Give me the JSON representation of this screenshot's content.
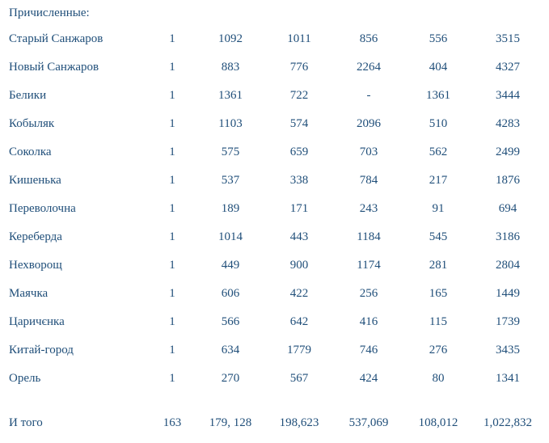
{
  "heading": "Причисленные:",
  "rows": [
    {
      "name": "Старый Санжаров",
      "values": [
        "1",
        "1092",
        "1011",
        "856",
        "556",
        "3515"
      ]
    },
    {
      "name": "Новый Санжаров",
      "values": [
        "1",
        "883",
        "776",
        "2264",
        "404",
        "4327"
      ]
    },
    {
      "name": "Белики",
      "values": [
        "1",
        "1361",
        "722",
        "-",
        "1361",
        "3444"
      ]
    },
    {
      "name": "Кобыляк",
      "values": [
        "1",
        "1103",
        "574",
        "2096",
        "510",
        "4283"
      ]
    },
    {
      "name": "Соколка",
      "values": [
        "1",
        "575",
        "659",
        "703",
        "562",
        "2499"
      ]
    },
    {
      "name": "Кишенька",
      "values": [
        "1",
        "537",
        "338",
        "784",
        "217",
        "1876"
      ]
    },
    {
      "name": "Переволочна",
      "values": [
        "1",
        "189",
        "171",
        "243",
        "91",
        "694"
      ]
    },
    {
      "name": "Кереберда",
      "values": [
        "1",
        "1014",
        "443",
        "1184",
        "545",
        "3186"
      ]
    },
    {
      "name": "Нехворощ",
      "values": [
        "1",
        "449",
        "900",
        "1174",
        "281",
        "2804"
      ]
    },
    {
      "name": "Маячка",
      "values": [
        "1",
        "606",
        "422",
        "256",
        "165",
        "1449"
      ]
    },
    {
      "name": "Царичєнка",
      "values": [
        "1",
        "566",
        "642",
        "416",
        "115",
        "1739"
      ]
    },
    {
      "name": "Китай-город",
      "values": [
        "1",
        "634",
        "1779",
        "746",
        "276",
        "3435"
      ]
    },
    {
      "name": "Орель",
      "values": [
        "1",
        "270",
        "567",
        "424",
        "80",
        "1341"
      ]
    }
  ],
  "total": {
    "name": "И того",
    "values": [
      "163",
      "179, 128",
      "198,623",
      "537,069",
      "108,012",
      "1,022,832"
    ]
  }
}
